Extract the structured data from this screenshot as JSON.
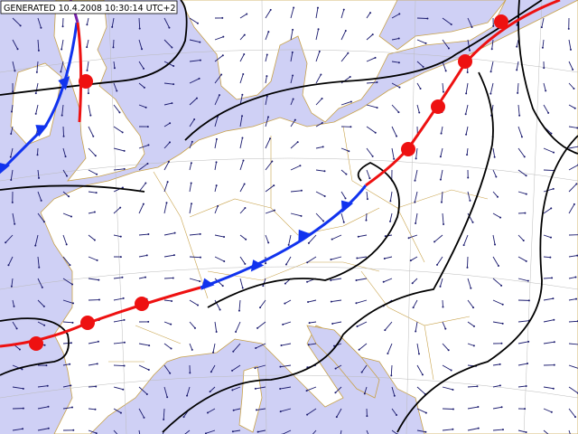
{
  "header": {
    "label": "GENERATED 10.4.2008 10:30:14 UTC+2"
  }
}
